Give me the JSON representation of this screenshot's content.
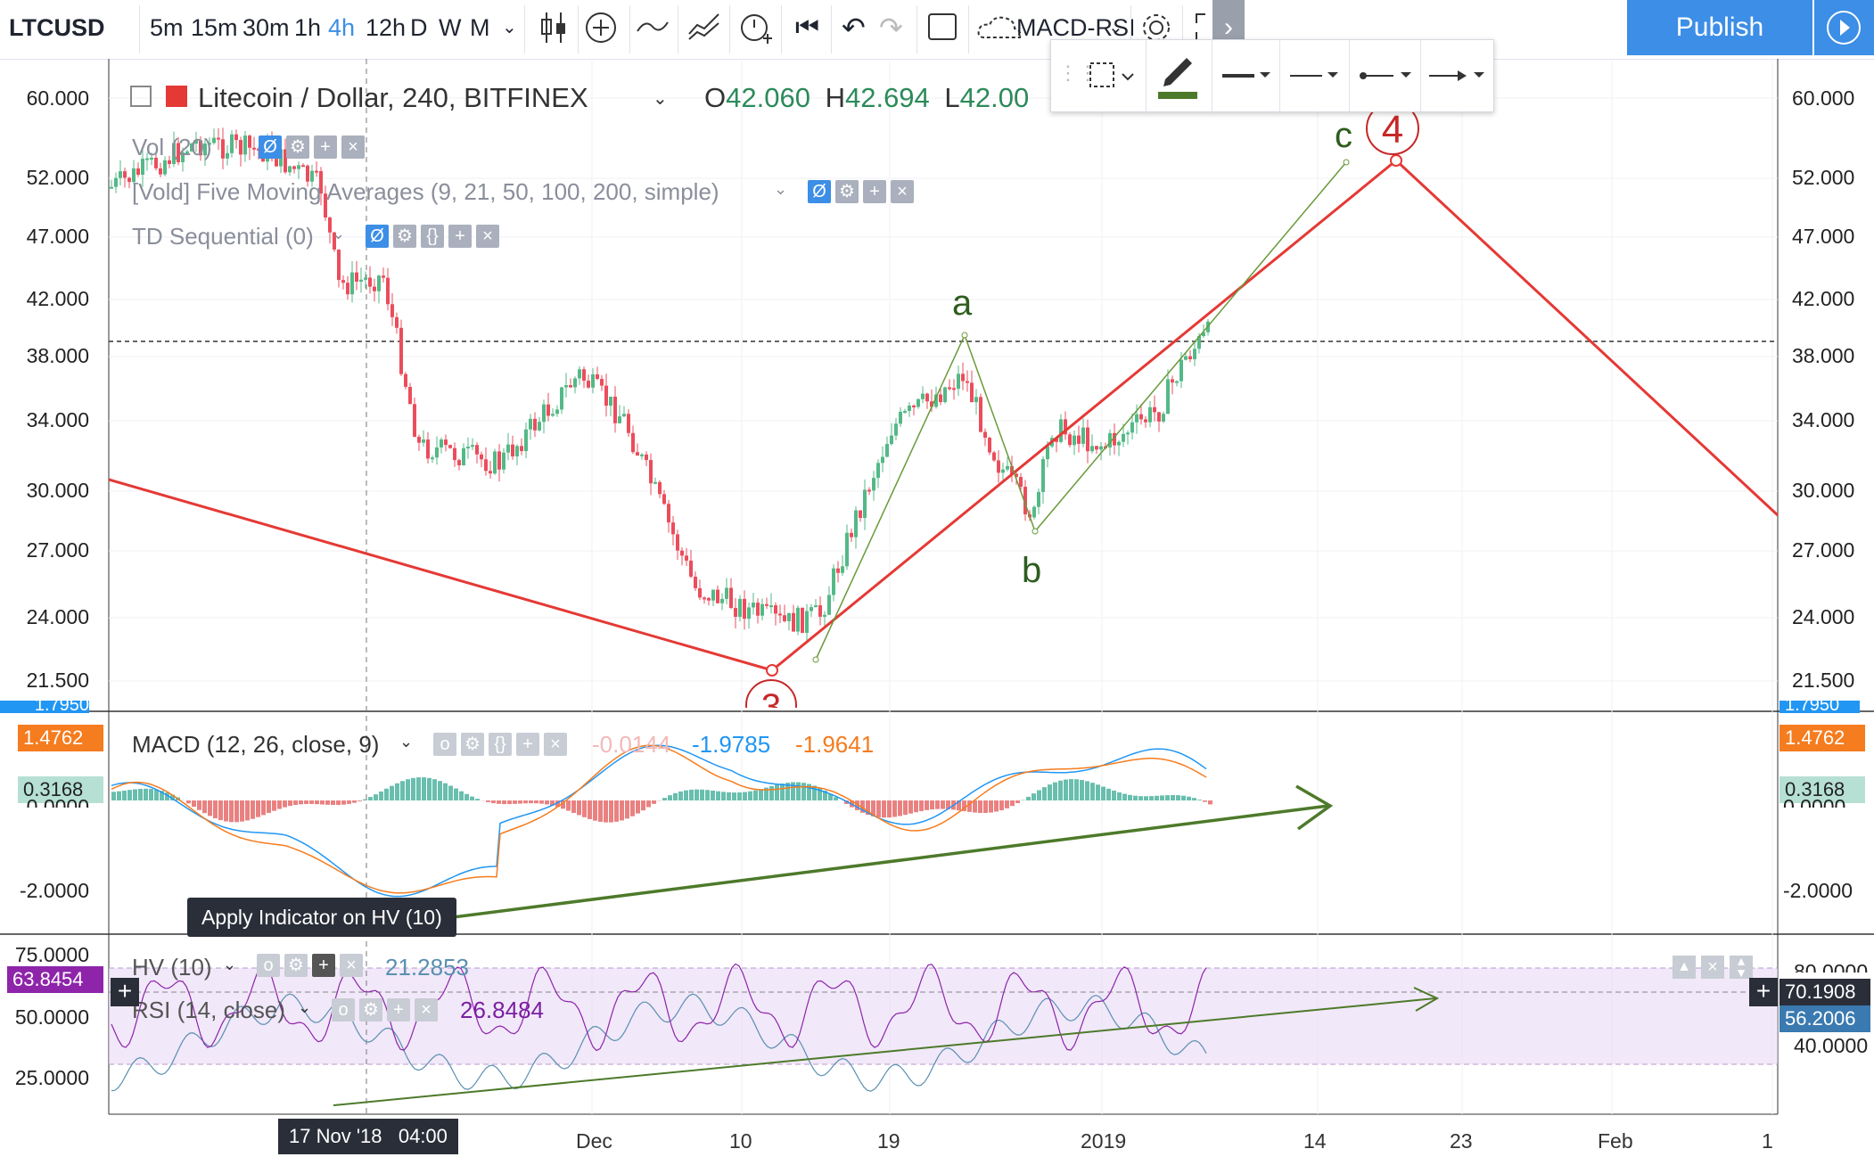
{
  "toolbar": {
    "symbol": "LTCUSD",
    "intervals": [
      "5m",
      "15m",
      "30m",
      "1h",
      "4h",
      "12h",
      "D",
      "W",
      "M"
    ],
    "active_interval": "4h",
    "study_name": "MACD-RSI",
    "publish_label": "Publish",
    "accent": "#3c8ee6"
  },
  "header": {
    "title": "Litecoin / Dollar, 240, BITFINEX",
    "open_label": "O",
    "open": "42.060",
    "high_label": "H",
    "high": "42.694",
    "low_label": "L",
    "low": "42.00"
  },
  "indicators": {
    "vol": "Vol (20)",
    "ma": "[Vold] Five Moving Averages (9, 21, 50, 100, 200, simple)",
    "td": "TD Sequential (0)",
    "macd": "MACD (12, 26, close, 9)",
    "macd_v1": "-0.0144",
    "macd_v2": "-1.9785",
    "macd_v3": "-1.9641",
    "hv": "HV (10)",
    "hv_val": "21.2853",
    "rsi": "RSI (14, close)",
    "rsi_val": "26.8484"
  },
  "price_axis": {
    "left": [
      "60.000",
      "52.000",
      "47.000",
      "42.000",
      "38.000",
      "34.000",
      "30.000",
      "27.000",
      "24.000",
      "21.500"
    ],
    "right": [
      "60.000",
      "52.000",
      "47.000",
      "42.000",
      "38.000",
      "34.000",
      "30.000",
      "27.000",
      "24.000",
      "21.500"
    ]
  },
  "macd_axis": {
    "top_left": "1.7950",
    "top_right": "1.7950",
    "orange_tag": "1.4762",
    "teal_tag": "0.3168",
    "zero": "0.0000",
    "minus2": "-2.0000"
  },
  "rsi_axis": {
    "left": [
      "75.0000",
      "50.0000",
      "25.0000"
    ],
    "purple_tag": "63.8454",
    "right_tags": [
      "80.0000",
      "70.1908",
      "56.2006",
      "40.0000"
    ]
  },
  "time_axis": {
    "labels": [
      "Dec",
      "10",
      "19",
      "2019",
      "14",
      "23",
      "Feb",
      "1"
    ],
    "cursor_date": "17 Nov '18",
    "cursor_time": "04:00"
  },
  "tooltip": "Apply Indicator on HV (10)",
  "wave_labels": {
    "a": "a",
    "b": "b",
    "c": "c",
    "four": "4",
    "three": "3"
  },
  "colors": {
    "red": "#e53935",
    "green": "#4d7a2a",
    "up": "#53b987",
    "down": "#eb4d5c"
  }
}
